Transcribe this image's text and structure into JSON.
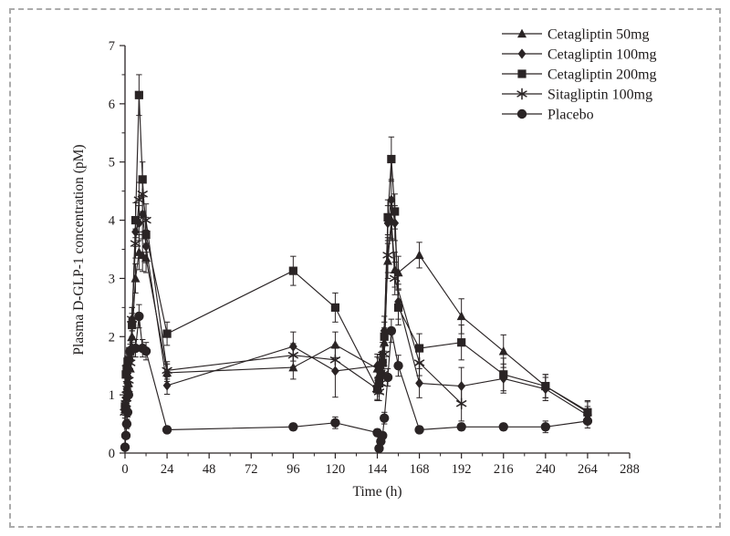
{
  "figure": {
    "background_color": "#ffffff",
    "border_color": "#ababab",
    "line_color": "#2a2425",
    "text_color": "#1d1a1a"
  },
  "chart_data": {
    "type": "line",
    "title": "",
    "xlabel": "Time (h)",
    "ylabel": "Plasma D-GLP-1 concentration (pM)",
    "xlim": [
      0,
      288
    ],
    "ylim": [
      0,
      7
    ],
    "x_ticks": [
      0,
      24,
      48,
      72,
      96,
      120,
      144,
      168,
      192,
      216,
      240,
      264,
      288
    ],
    "y_ticks": [
      0,
      1,
      2,
      3,
      4,
      5,
      6,
      7
    ],
    "x_minor_step": 12,
    "y_minor_step": 0.5,
    "grid": false,
    "legend_position": "top-right",
    "error_bars": true,
    "series": [
      {
        "name": "Cetagliptin 50mg",
        "marker": "triangle",
        "x": [
          0,
          0.5,
          1,
          1.5,
          2,
          3,
          4,
          6,
          8,
          10,
          12,
          24,
          96,
          120,
          144,
          145,
          146,
          147,
          148,
          150,
          152,
          154,
          156,
          168,
          192,
          216,
          240,
          264
        ],
        "y": [
          0.75,
          0.85,
          0.95,
          1.05,
          1.2,
          1.45,
          2.0,
          3.0,
          3.45,
          3.4,
          3.35,
          1.38,
          1.47,
          1.86,
          1.45,
          1.35,
          1.5,
          1.62,
          1.9,
          3.3,
          4.0,
          3.15,
          3.1,
          3.4,
          2.35,
          1.75,
          1.15,
          0.72
        ],
        "err": [
          0.1,
          0.1,
          0.1,
          0.1,
          0.12,
          0.15,
          0.2,
          0.25,
          0.3,
          0.28,
          0.25,
          0.15,
          0.2,
          0.22,
          0.2,
          0.18,
          0.18,
          0.2,
          0.25,
          0.3,
          0.32,
          0.3,
          0.28,
          0.22,
          0.3,
          0.28,
          0.2,
          0.18
        ]
      },
      {
        "name": "Cetagliptin 100mg",
        "marker": "diamond",
        "x": [
          0,
          0.5,
          1,
          1.5,
          2,
          3,
          4,
          6,
          8,
          10,
          12,
          24,
          96,
          120,
          144,
          145,
          146,
          147,
          148,
          150,
          152,
          154,
          156,
          168,
          192,
          216,
          240,
          264
        ],
        "y": [
          0.8,
          0.95,
          1.1,
          1.2,
          1.3,
          1.6,
          2.3,
          3.8,
          3.95,
          4.1,
          3.55,
          1.16,
          1.83,
          1.41,
          1.5,
          1.45,
          1.55,
          1.7,
          2.1,
          3.95,
          4.35,
          3.95,
          2.6,
          1.2,
          1.15,
          1.28,
          1.1,
          0.65
        ],
        "err": [
          0.1,
          0.1,
          0.1,
          0.12,
          0.12,
          0.15,
          0.2,
          0.25,
          0.3,
          0.3,
          0.28,
          0.15,
          0.25,
          0.45,
          0.2,
          0.18,
          0.18,
          0.2,
          0.25,
          0.3,
          0.35,
          0.3,
          0.3,
          0.25,
          0.32,
          0.25,
          0.2,
          0.15
        ]
      },
      {
        "name": "Cetagliptin 200mg",
        "marker": "square",
        "x": [
          0,
          0.5,
          1,
          1.5,
          2,
          3,
          4,
          6,
          8,
          10,
          12,
          24,
          96,
          120,
          144,
          145,
          146,
          147,
          148,
          150,
          152,
          154,
          156,
          168,
          192,
          216,
          240,
          264
        ],
        "y": [
          0.8,
          1.35,
          1.45,
          1.57,
          1.6,
          1.75,
          2.2,
          4.0,
          6.15,
          4.7,
          3.75,
          2.05,
          3.13,
          2.5,
          1.1,
          1.2,
          1.35,
          1.55,
          2.0,
          4.05,
          5.05,
          4.15,
          2.5,
          1.8,
          1.9,
          1.35,
          1.15,
          0.7
        ],
        "err": [
          0.1,
          0.12,
          0.15,
          0.15,
          0.15,
          0.18,
          0.2,
          0.3,
          0.35,
          0.3,
          0.3,
          0.2,
          0.25,
          0.25,
          0.2,
          0.18,
          0.2,
          0.2,
          0.25,
          0.3,
          0.38,
          0.3,
          0.3,
          0.25,
          0.3,
          0.28,
          0.2,
          0.18
        ]
      },
      {
        "name": "Sitagliptin 100mg",
        "marker": "star",
        "x": [
          0,
          0.5,
          1,
          1.5,
          2,
          3,
          4,
          6,
          8,
          10,
          12,
          24,
          96,
          120,
          144,
          145,
          146,
          147,
          148,
          150,
          152,
          154,
          168,
          192
        ],
        "y": [
          0.7,
          0.85,
          1.0,
          1.1,
          1.25,
          1.55,
          2.3,
          3.6,
          4.35,
          4.45,
          4.0,
          1.42,
          1.68,
          1.6,
          1.1,
          1.05,
          1.2,
          1.35,
          1.7,
          3.4,
          3.95,
          3.0,
          1.55,
          0.85
        ],
        "err": [
          0.1,
          0.1,
          0.1,
          0.1,
          0.12,
          0.15,
          0.2,
          0.25,
          0.3,
          0.3,
          0.28,
          0.15,
          0.2,
          0.2,
          0.18,
          0.15,
          0.18,
          0.18,
          0.2,
          0.3,
          0.3,
          0.28,
          0.22,
          0.3
        ]
      },
      {
        "name": "Placebo",
        "marker": "circle",
        "x": [
          0,
          0.5,
          1,
          1.5,
          2,
          3,
          4,
          6,
          8,
          10,
          12,
          24,
          96,
          120,
          144,
          145,
          146,
          147,
          148,
          150,
          152,
          156,
          168,
          192,
          216,
          240,
          264
        ],
        "y": [
          0.1,
          0.3,
          0.5,
          0.7,
          1.0,
          1.75,
          1.78,
          1.8,
          2.35,
          1.8,
          1.75,
          0.4,
          0.45,
          0.52,
          0.35,
          0.08,
          0.2,
          0.3,
          0.6,
          1.3,
          2.1,
          1.5,
          0.4,
          0.45,
          0.45,
          0.45,
          0.55
        ],
        "err": [
          0.04,
          0.05,
          0.08,
          0.08,
          0.1,
          0.12,
          0.12,
          0.15,
          0.2,
          0.15,
          0.15,
          0.06,
          0.06,
          0.1,
          0.06,
          0.04,
          0.05,
          0.06,
          0.1,
          0.15,
          0.2,
          0.18,
          0.06,
          0.06,
          0.06,
          0.1,
          0.12
        ]
      }
    ]
  }
}
